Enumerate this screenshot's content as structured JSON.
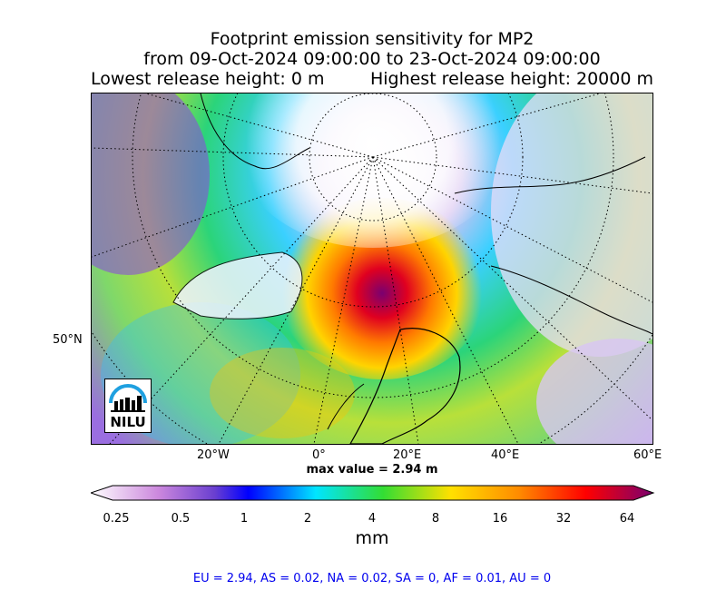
{
  "title": {
    "line1": "Footprint emission sensitivity for MP2",
    "line2": "from 09-Oct-2024 09:00:00 to 23-Oct-2024 09:00:00",
    "lowest": "Lowest release height: 0 m",
    "highest": "Highest release height: 20000 m"
  },
  "axes": {
    "lat_label": "50°N",
    "lon_labels": [
      "20°W",
      "0°",
      "20°E",
      "40°E",
      "60°E"
    ]
  },
  "max_value": "max value = 2.94 m",
  "logo": {
    "text": "NILU"
  },
  "colorbar": {
    "ticks": [
      "0.25",
      "0.5",
      "1",
      "2",
      "4",
      "8",
      "16",
      "32",
      "64"
    ],
    "unit": "mm",
    "colors": [
      "#ffffff",
      "#cc88dd",
      "#6a3fd0",
      "#0000ff",
      "#00e5ff",
      "#33dd33",
      "#ffe000",
      "#ff8c00",
      "#ff0000",
      "#7a0070"
    ]
  },
  "summary": "EU = 2.94,  AS = 0.02,  NA = 0.02,  SA = 0,  AF = 0.01,  AU = 0"
}
